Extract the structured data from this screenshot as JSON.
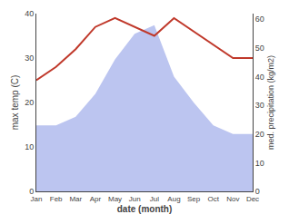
{
  "chart_data": {
    "type": "line",
    "xlabel": "date (month)",
    "ylabel": "max temp (C)",
    "y2label": "med. precipitation (kg/m2)",
    "categories": [
      "Jan",
      "Feb",
      "Mar",
      "Apr",
      "May",
      "Jun",
      "Jul",
      "Aug",
      "Sep",
      "Oct",
      "Nov",
      "Dec"
    ],
    "series": [
      {
        "type": "area",
        "axis": "y2",
        "color": "#bcc5f0",
        "values": [
          23,
          23,
          26,
          34,
          46,
          55,
          58,
          40,
          31,
          23,
          20,
          20
        ]
      },
      {
        "type": "line",
        "color": "#c0392b",
        "values": [
          25,
          28,
          32,
          37,
          39,
          37,
          35,
          39,
          36,
          33,
          30,
          30
        ]
      }
    ],
    "ylim": [
      0,
      40
    ],
    "yticks": [
      0,
      10,
      20,
      30,
      40
    ],
    "y2lim": [
      0,
      62
    ],
    "y2ticks": [
      0,
      10,
      20,
      30,
      40,
      50,
      60
    ],
    "grid": false
  }
}
